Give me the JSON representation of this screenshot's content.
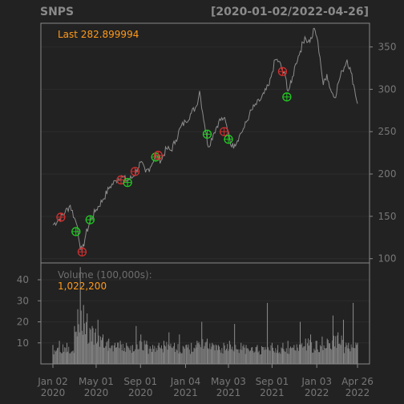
{
  "header": {
    "symbol": "SNPS",
    "date_range": "[2020-01-02/2022-04-26]"
  },
  "price_panel": {
    "last_label": "Last 282.899994"
  },
  "volume_panel": {
    "label": "Volume (100,000s):",
    "last_value": "1,022,200"
  },
  "colors": {
    "background": "#222222",
    "panel_border": "#888888",
    "grid": "#2c2c2c",
    "axis_text": "#777777",
    "title_text": "#8a8a8a",
    "price_line": "#8c8c8c",
    "volume_bars": "#8c8c8c",
    "highlight_text": "#ff9a1a",
    "sell_marker": "#d03030",
    "buy_marker": "#22cc22"
  },
  "chart_data": [
    {
      "type": "line",
      "title": "SNPS",
      "ylim": [
        95,
        378
      ],
      "y_ticks": [
        100,
        150,
        200,
        250,
        300,
        350
      ],
      "x_ticks": [
        {
          "date": "2020-01-02",
          "label": [
            "Jan 02",
            "2020"
          ]
        },
        {
          "date": "2020-05-01",
          "label": [
            "May 01",
            "2020"
          ]
        },
        {
          "date": "2020-09-01",
          "label": [
            "Sep 01",
            "2020"
          ]
        },
        {
          "date": "2021-01-04",
          "label": [
            "Jan 04",
            "2021"
          ]
        },
        {
          "date": "2021-05-03",
          "label": [
            "May 03",
            "2021"
          ]
        },
        {
          "date": "2021-09-01",
          "label": [
            "Sep 01",
            "2021"
          ]
        },
        {
          "date": "2022-01-03",
          "label": [
            "Jan 03",
            "2022"
          ]
        },
        {
          "date": "2022-04-26",
          "label": [
            "Apr 26",
            "2022"
          ]
        }
      ],
      "series": [
        {
          "points": [
            [
              "2020-01-02",
              140
            ],
            [
              "2020-01-20",
              147
            ],
            [
              "2020-02-05",
              155
            ],
            [
              "2020-02-19",
              163
            ],
            [
              "2020-03-02",
              148
            ],
            [
              "2020-03-10",
              138
            ],
            [
              "2020-03-16",
              118
            ],
            [
              "2020-03-23",
              108
            ],
            [
              "2020-04-02",
              128
            ],
            [
              "2020-04-15",
              145
            ],
            [
              "2020-05-01",
              158
            ],
            [
              "2020-05-20",
              170
            ],
            [
              "2020-06-08",
              185
            ],
            [
              "2020-06-25",
              192
            ],
            [
              "2020-07-10",
              198
            ],
            [
              "2020-07-25",
              192
            ],
            [
              "2020-08-10",
              196
            ],
            [
              "2020-08-25",
              207
            ],
            [
              "2020-09-01",
              214
            ],
            [
              "2020-09-15",
              202
            ],
            [
              "2020-09-28",
              208
            ],
            [
              "2020-10-12",
              222
            ],
            [
              "2020-10-28",
              216
            ],
            [
              "2020-11-12",
              230
            ],
            [
              "2020-11-25",
              228
            ],
            [
              "2020-12-08",
              240
            ],
            [
              "2020-12-21",
              255
            ],
            [
              "2021-01-04",
              262
            ],
            [
              "2021-01-20",
              272
            ],
            [
              "2021-02-03",
              280
            ],
            [
              "2021-02-12",
              298
            ],
            [
              "2021-02-26",
              258
            ],
            [
              "2021-03-08",
              232
            ],
            [
              "2021-03-22",
              247
            ],
            [
              "2021-04-06",
              262
            ],
            [
              "2021-04-20",
              266
            ],
            [
              "2021-05-03",
              250
            ],
            [
              "2021-05-12",
              232
            ],
            [
              "2021-05-20",
              235
            ],
            [
              "2021-06-02",
              245
            ],
            [
              "2021-06-16",
              255
            ],
            [
              "2021-06-30",
              270
            ],
            [
              "2021-07-14",
              280
            ],
            [
              "2021-07-28",
              286
            ],
            [
              "2021-08-10",
              295
            ],
            [
              "2021-08-24",
              305
            ],
            [
              "2021-09-01",
              320
            ],
            [
              "2021-09-10",
              335
            ],
            [
              "2021-09-20",
              333
            ],
            [
              "2021-09-30",
              322
            ],
            [
              "2021-10-08",
              315
            ],
            [
              "2021-10-15",
              298
            ],
            [
              "2021-10-25",
              308
            ],
            [
              "2021-11-05",
              330
            ],
            [
              "2021-11-18",
              345
            ],
            [
              "2021-12-01",
              362
            ],
            [
              "2021-12-10",
              356
            ],
            [
              "2021-12-20",
              360
            ],
            [
              "2021-12-27",
              372
            ],
            [
              "2022-01-03",
              362
            ],
            [
              "2022-01-12",
              338
            ],
            [
              "2022-01-21",
              305
            ],
            [
              "2022-01-31",
              318
            ],
            [
              "2022-02-10",
              300
            ],
            [
              "2022-02-22",
              290
            ],
            [
              "2022-03-04",
              308
            ],
            [
              "2022-03-15",
              322
            ],
            [
              "2022-03-28",
              335
            ],
            [
              "2022-04-08",
              320
            ],
            [
              "2022-04-18",
              300
            ],
            [
              "2022-04-26",
              283
            ]
          ]
        }
      ],
      "markers": [
        {
          "date": "2020-01-24",
          "value": 149,
          "signal": "sell"
        },
        {
          "date": "2020-03-06",
          "value": 132,
          "signal": "buy"
        },
        {
          "date": "2020-03-23",
          "value": 108,
          "signal": "sell"
        },
        {
          "date": "2020-04-14",
          "value": 146,
          "signal": "buy"
        },
        {
          "date": "2020-07-09",
          "value": 193,
          "signal": "sell"
        },
        {
          "date": "2020-07-27",
          "value": 190,
          "signal": "buy"
        },
        {
          "date": "2020-08-17",
          "value": 203,
          "signal": "sell"
        },
        {
          "date": "2020-10-13",
          "value": 220,
          "signal": "buy"
        },
        {
          "date": "2020-10-20",
          "value": 222,
          "signal": "sell"
        },
        {
          "date": "2021-03-05",
          "value": 247,
          "signal": "buy"
        },
        {
          "date": "2021-04-21",
          "value": 250,
          "signal": "sell"
        },
        {
          "date": "2021-05-03",
          "value": 241,
          "signal": "buy"
        },
        {
          "date": "2021-09-30",
          "value": 321,
          "signal": "sell"
        },
        {
          "date": "2021-10-12",
          "value": 291,
          "signal": "buy"
        }
      ]
    },
    {
      "type": "bar",
      "title": "Volume (100,000s):",
      "ylim": [
        0,
        48
      ],
      "y_ticks": [
        10,
        20,
        30,
        40
      ],
      "bars": [
        [
          "2020-01-02",
          9
        ],
        [
          "2020-01-20",
          11
        ],
        [
          "2020-02-10",
          10
        ],
        [
          "2020-03-02",
          18
        ],
        [
          "2020-03-11",
          26
        ],
        [
          "2020-03-18",
          46
        ],
        [
          "2020-03-27",
          28
        ],
        [
          "2020-04-06",
          24
        ],
        [
          "2020-04-20",
          18
        ],
        [
          "2020-05-06",
          21
        ],
        [
          "2020-05-20",
          14
        ],
        [
          "2020-06-05",
          12
        ],
        [
          "2020-06-22",
          10
        ],
        [
          "2020-07-07",
          11
        ],
        [
          "2020-07-24",
          10
        ],
        [
          "2020-08-10",
          9
        ],
        [
          "2020-08-20",
          18
        ],
        [
          "2020-09-02",
          14
        ],
        [
          "2020-09-18",
          11
        ],
        [
          "2020-10-05",
          9
        ],
        [
          "2020-10-22",
          10
        ],
        [
          "2020-11-05",
          11
        ],
        [
          "2020-11-19",
          15
        ],
        [
          "2020-12-04",
          10
        ],
        [
          "2020-12-18",
          14
        ],
        [
          "2021-01-05",
          9
        ],
        [
          "2021-01-20",
          10
        ],
        [
          "2021-02-05",
          11
        ],
        [
          "2021-02-18",
          20
        ],
        [
          "2021-03-05",
          12
        ],
        [
          "2021-03-19",
          10
        ],
        [
          "2021-04-05",
          9
        ],
        [
          "2021-04-20",
          10
        ],
        [
          "2021-05-06",
          11
        ],
        [
          "2021-05-20",
          19
        ],
        [
          "2021-06-07",
          10
        ],
        [
          "2021-06-21",
          9
        ],
        [
          "2021-07-08",
          8
        ],
        [
          "2021-07-22",
          9
        ],
        [
          "2021-08-06",
          8
        ],
        [
          "2021-08-19",
          29
        ],
        [
          "2021-09-01",
          10
        ],
        [
          "2021-09-17",
          9
        ],
        [
          "2021-10-01",
          10
        ],
        [
          "2021-10-15",
          11
        ],
        [
          "2021-11-01",
          9
        ],
        [
          "2021-11-18",
          20
        ],
        [
          "2021-12-03",
          12
        ],
        [
          "2021-12-17",
          14
        ],
        [
          "2022-01-03",
          11
        ],
        [
          "2022-01-18",
          13
        ],
        [
          "2022-02-01",
          12
        ],
        [
          "2022-02-17",
          23
        ],
        [
          "2022-03-03",
          15
        ],
        [
          "2022-03-18",
          21
        ],
        [
          "2022-04-01",
          10
        ],
        [
          "2022-04-14",
          29
        ],
        [
          "2022-04-26",
          10
        ]
      ]
    }
  ]
}
